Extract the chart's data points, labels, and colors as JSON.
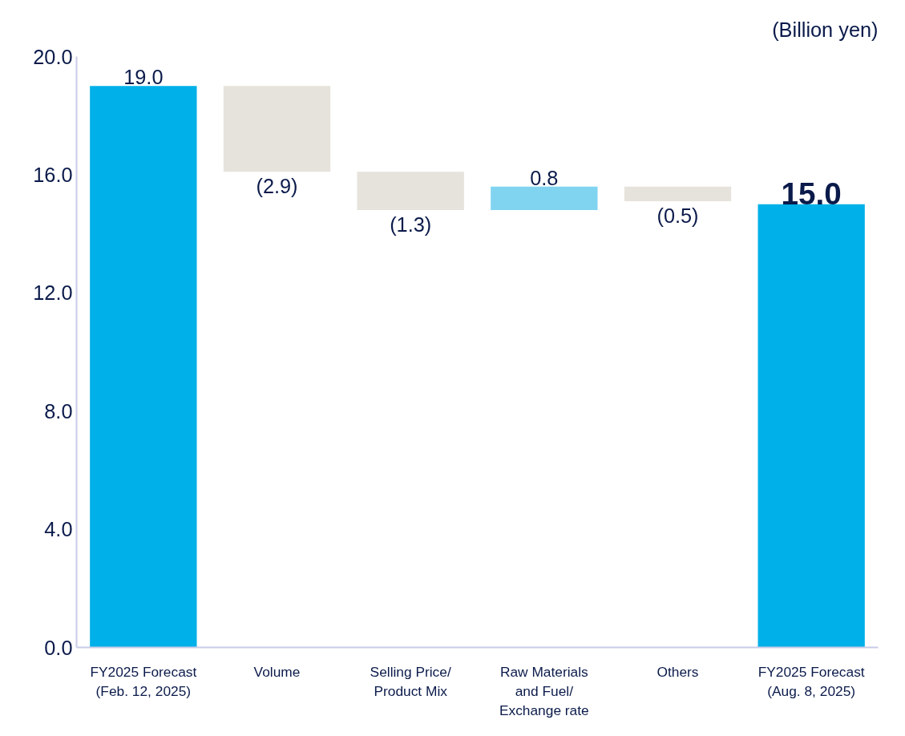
{
  "chart_data": {
    "type": "bar",
    "categories": [
      "FY2025 Forecast\n(Feb. 12, 2025)",
      "Volume",
      "Selling Price/\nProduct Mix",
      "Raw Materials\nand Fuel/\nExchange rate",
      "Others",
      "FY2025 Forecast\n(Aug. 8, 2025)"
    ],
    "values": [
      19.0,
      -2.9,
      -1.3,
      0.8,
      -0.5,
      15.0
    ],
    "base": [
      0,
      19.0,
      16.1,
      14.8,
      15.6,
      0
    ],
    "colors": [
      "#00b0e8",
      "#e6e3dc",
      "#e6e3dc",
      "#80d4f0",
      "#e6e3dc",
      "#00b0e8"
    ],
    "value_labels": [
      "19.0",
      "(2.9)",
      "(1.3)",
      "0.8",
      "(0.5)",
      "15.0"
    ],
    "ylim": [
      0,
      20
    ],
    "yticks": [
      {
        "value": 0,
        "label": "0.0"
      },
      {
        "value": 4,
        "label": "4.0"
      },
      {
        "value": 8,
        "label": "8.0"
      },
      {
        "value": 12,
        "label": "12.0"
      },
      {
        "value": 16,
        "label": "16.0"
      },
      {
        "value": 20,
        "label": "20.0"
      }
    ],
    "annotations": [
      "(Billion yen)"
    ],
    "grid": false
  }
}
